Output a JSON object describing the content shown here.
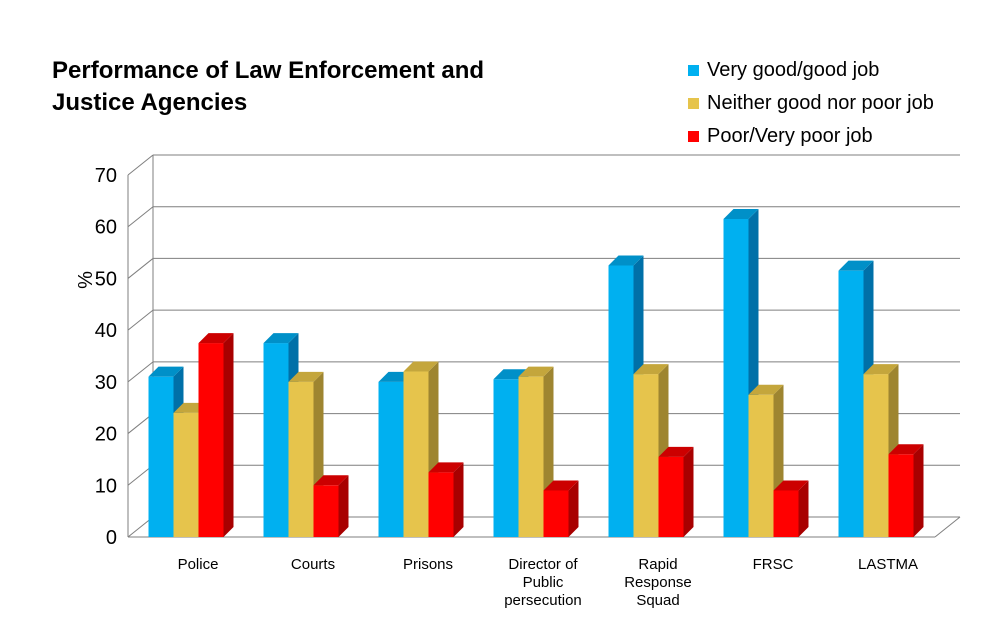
{
  "chart_data": {
    "type": "bar",
    "title": "Performance of Law Enforcement and Justice Agencies",
    "ylabel": "%",
    "ylim": [
      0,
      70
    ],
    "yticks": [
      "0",
      "10",
      "20",
      "30",
      "40",
      "50",
      "60",
      "70"
    ],
    "categories": [
      "Police",
      "Courts",
      "Prisons",
      "Director of Public persecution",
      "Rapid Response Squad",
      "FRSC",
      "LASTMA"
    ],
    "category_lines": [
      [
        "Police"
      ],
      [
        "Courts"
      ],
      [
        "Prisons"
      ],
      [
        "Director of",
        "Public",
        "persecution"
      ],
      [
        "Rapid",
        "Response",
        "Squad"
      ],
      [
        "FRSC"
      ],
      [
        "LASTMA"
      ]
    ],
    "series": [
      {
        "name": "Very good/good job",
        "values": [
          31,
          37.5,
          30,
          30.5,
          52.5,
          61.5,
          51.5
        ],
        "color": "#00b0f0",
        "side": "#0070a8",
        "top": "#0090c8"
      },
      {
        "name": "Neither good nor poor job",
        "values": [
          24,
          30,
          32,
          31,
          31.5,
          27.5,
          31.5
        ],
        "color": "#e6c44c",
        "side": "#9e8530",
        "top": "#c4a63c"
      },
      {
        "name": "Poor/Very poor job",
        "values": [
          37.5,
          10,
          12.5,
          9,
          15.5,
          9,
          16
        ],
        "color": "#ff0000",
        "side": "#a80000",
        "top": "#cc0000"
      }
    ],
    "grid": true,
    "legend": "top-right"
  }
}
